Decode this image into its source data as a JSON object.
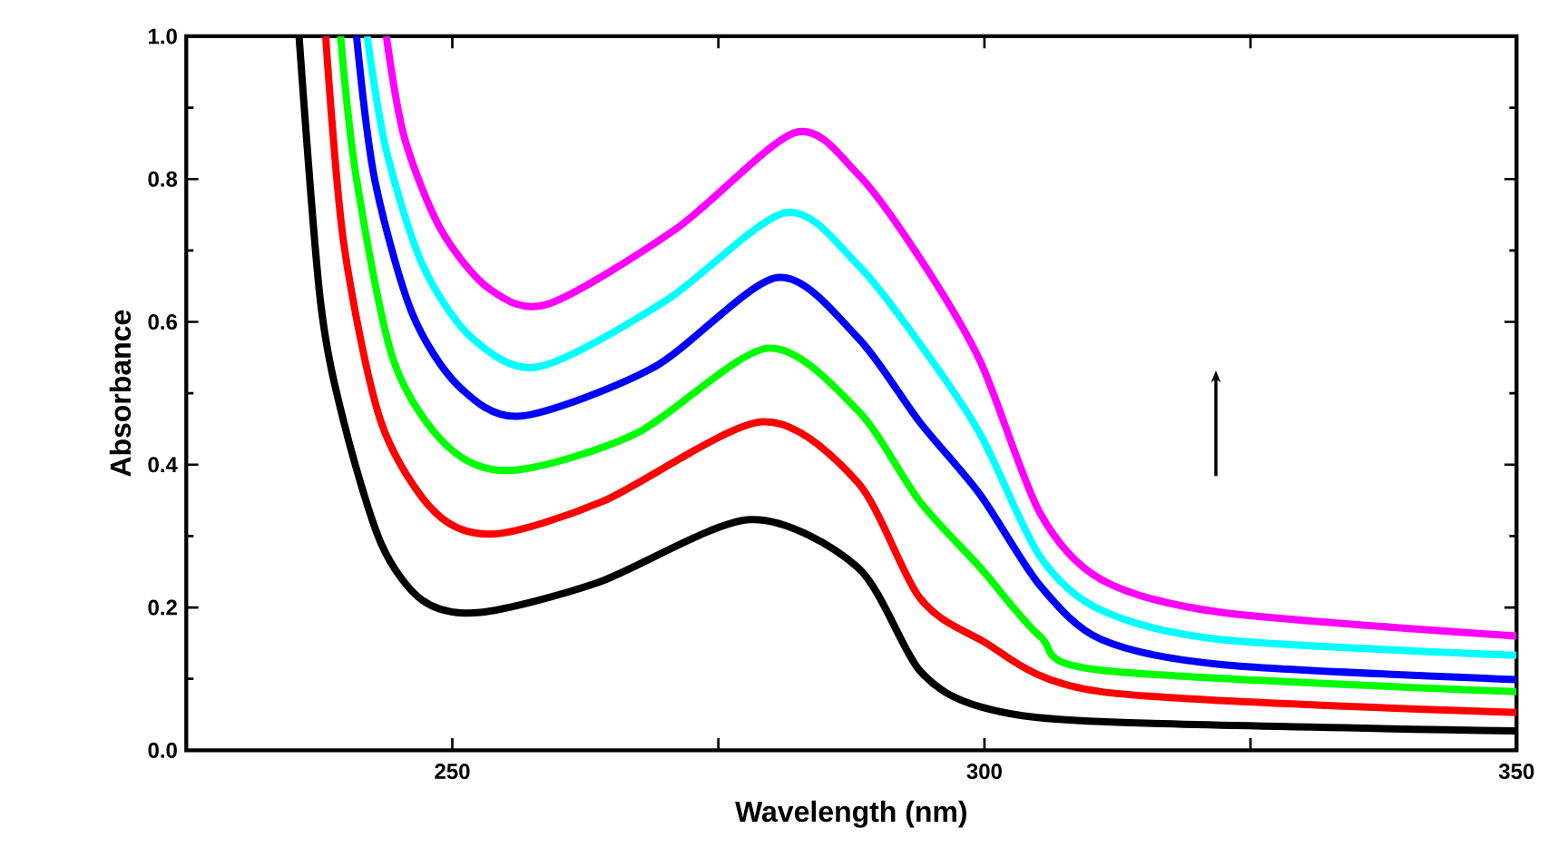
{
  "chart_data": {
    "type": "line",
    "xlabel": "Wavelength (nm)",
    "ylabel": "Absorbance",
    "xlim": [
      225,
      350
    ],
    "ylim": [
      0,
      1.0
    ],
    "xticks": [
      {
        "value": 225,
        "label": null
      },
      250,
      {
        "value": 275,
        "label": null
      },
      300,
      {
        "value": 325,
        "label": null
      },
      350
    ],
    "yticks": [
      {
        "value": 0,
        "label": "0.0"
      },
      {
        "value": 0.2,
        "label": "0.2"
      },
      {
        "value": 0.4,
        "label": "0.4"
      },
      {
        "value": 0.6,
        "label": "0.6"
      },
      {
        "value": 0.8,
        "label": "0.8"
      },
      {
        "value": 1.0,
        "label": "1.0"
      }
    ],
    "marker": "none",
    "line_style": "solid",
    "series": [
      {
        "color": "#000000",
        "x": [
          235.6,
          237.6,
          239.8,
          243.3,
          247.2,
          252.6,
          263.7,
          277.9,
          288.1,
          293.9,
          299.6,
          311,
          350
        ],
        "values": [
          1.0,
          0.63,
          0.46,
          0.29,
          0.21,
          0.193,
          0.235,
          0.323,
          0.256,
          0.112,
          0.061,
          0.04,
          0.027
        ]
      },
      {
        "color": "#ff0000",
        "x": [
          238.1,
          239.8,
          243.3,
          248.4,
          254,
          264.2,
          279.1,
          288.1,
          293.9,
          299.6,
          311,
          350
        ],
        "values": [
          1.0,
          0.71,
          0.46,
          0.333,
          0.303,
          0.349,
          0.46,
          0.375,
          0.214,
          0.155,
          0.082,
          0.053
        ]
      },
      {
        "color": "#00ff00",
        "x": [
          239.5,
          241,
          244.5,
          249.6,
          255.7,
          267.2,
          279.6,
          288.1,
          293.9,
          299.6,
          305.2,
          311,
          350
        ],
        "values": [
          1.0,
          0.8,
          0.545,
          0.425,
          0.392,
          0.443,
          0.563,
          0.476,
          0.349,
          0.256,
          0.16,
          0.112,
          0.082
        ]
      },
      {
        "color": "#0000ff",
        "x": [
          241,
          242.7,
          246.2,
          250.6,
          256.4,
          268.9,
          280.5,
          288.1,
          293.9,
          299.6,
          305.2,
          311,
          322.3,
          350
        ],
        "values": [
          1.0,
          0.8,
          0.613,
          0.51,
          0.468,
          0.536,
          0.662,
          0.578,
          0.46,
          0.358,
          0.231,
          0.155,
          0.12,
          0.099
        ]
      },
      {
        "color": "#00ffff",
        "x": [
          242,
          243.8,
          247.2,
          251.8,
          258.1,
          270,
          281.3,
          288.1,
          293.9,
          299.6,
          305.2,
          311,
          322.3,
          350
        ],
        "values": [
          1.0,
          0.84,
          0.68,
          0.578,
          0.537,
          0.629,
          0.753,
          0.68,
          0.57,
          0.443,
          0.272,
          0.196,
          0.155,
          0.133
        ]
      },
      {
        "color": "#ff00ff",
        "x": [
          243.8,
          245.5,
          248.9,
          253.5,
          259,
          271,
          282.2,
          288.1,
          293.9,
          299.6,
          305.2,
          311,
          322.3,
          350
        ],
        "values": [
          1.0,
          0.858,
          0.73,
          0.646,
          0.625,
          0.73,
          0.865,
          0.807,
          0.69,
          0.545,
          0.333,
          0.239,
          0.193,
          0.16
        ]
      }
    ]
  }
}
